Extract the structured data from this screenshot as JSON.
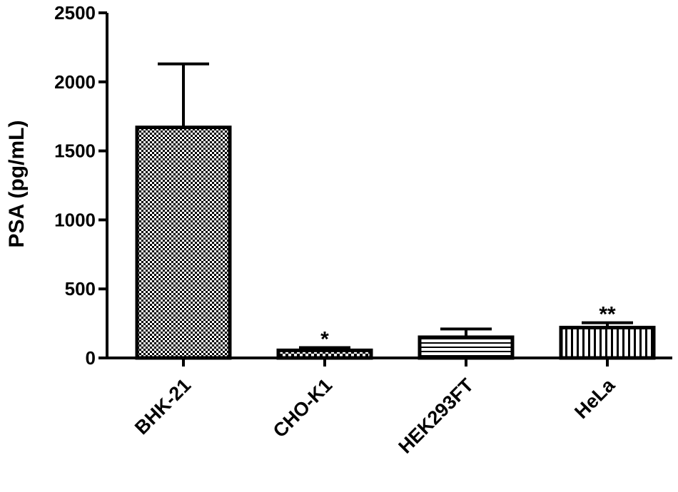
{
  "chart_data": {
    "type": "bar",
    "ylabel": "PSA (pg/mL)",
    "ylim": [
      0,
      2500
    ],
    "yticks": [
      "0",
      "500",
      "1000",
      "1500",
      "2000",
      "2500"
    ],
    "categories": [
      "BHK-21",
      "CHO-K1",
      "HEK293FT",
      "HeLa"
    ],
    "values": [
      1670,
      55,
      150,
      220
    ],
    "error_upper": [
      2130,
      75,
      210,
      255
    ],
    "annotations": [
      "",
      "*",
      "",
      "**"
    ],
    "patterns": [
      "crosshatch-dots",
      "checker",
      "horizontal-lines",
      "vertical-lines"
    ],
    "grid": false,
    "legend": "none",
    "colors": {
      "bar_stroke": "#000000",
      "pattern": "#000000",
      "background": "#ffffff"
    }
  }
}
